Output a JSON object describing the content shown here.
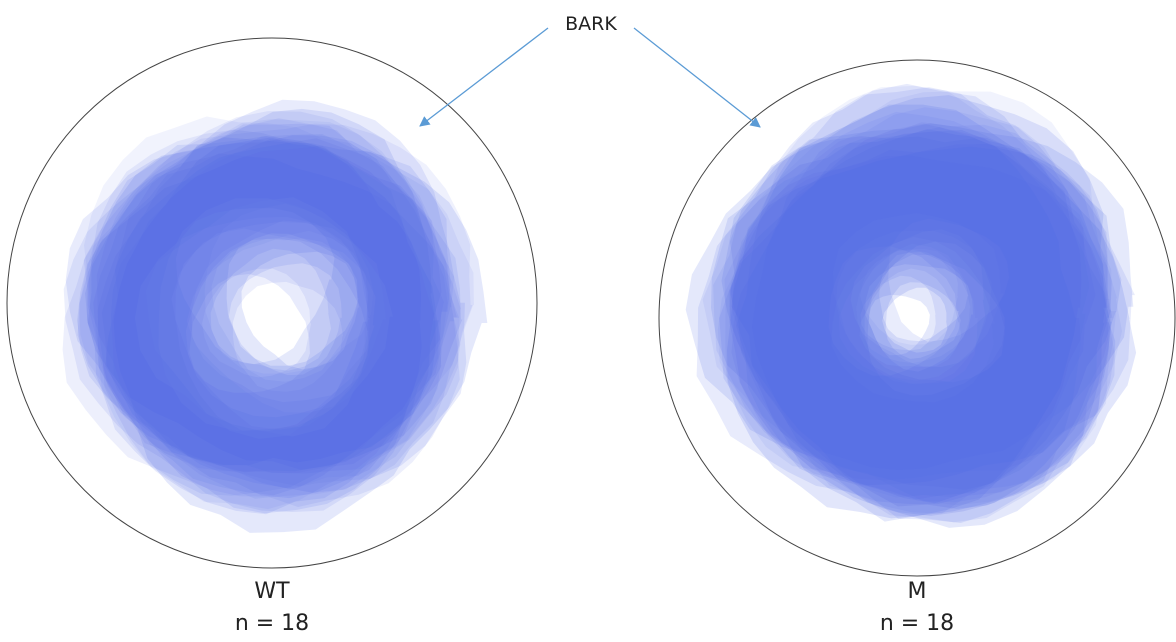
{
  "label": "BARK",
  "panels": [
    {
      "label": "WT",
      "n": "n = 18"
    },
    {
      "label": "M",
      "n": "n = 18"
    }
  ]
}
